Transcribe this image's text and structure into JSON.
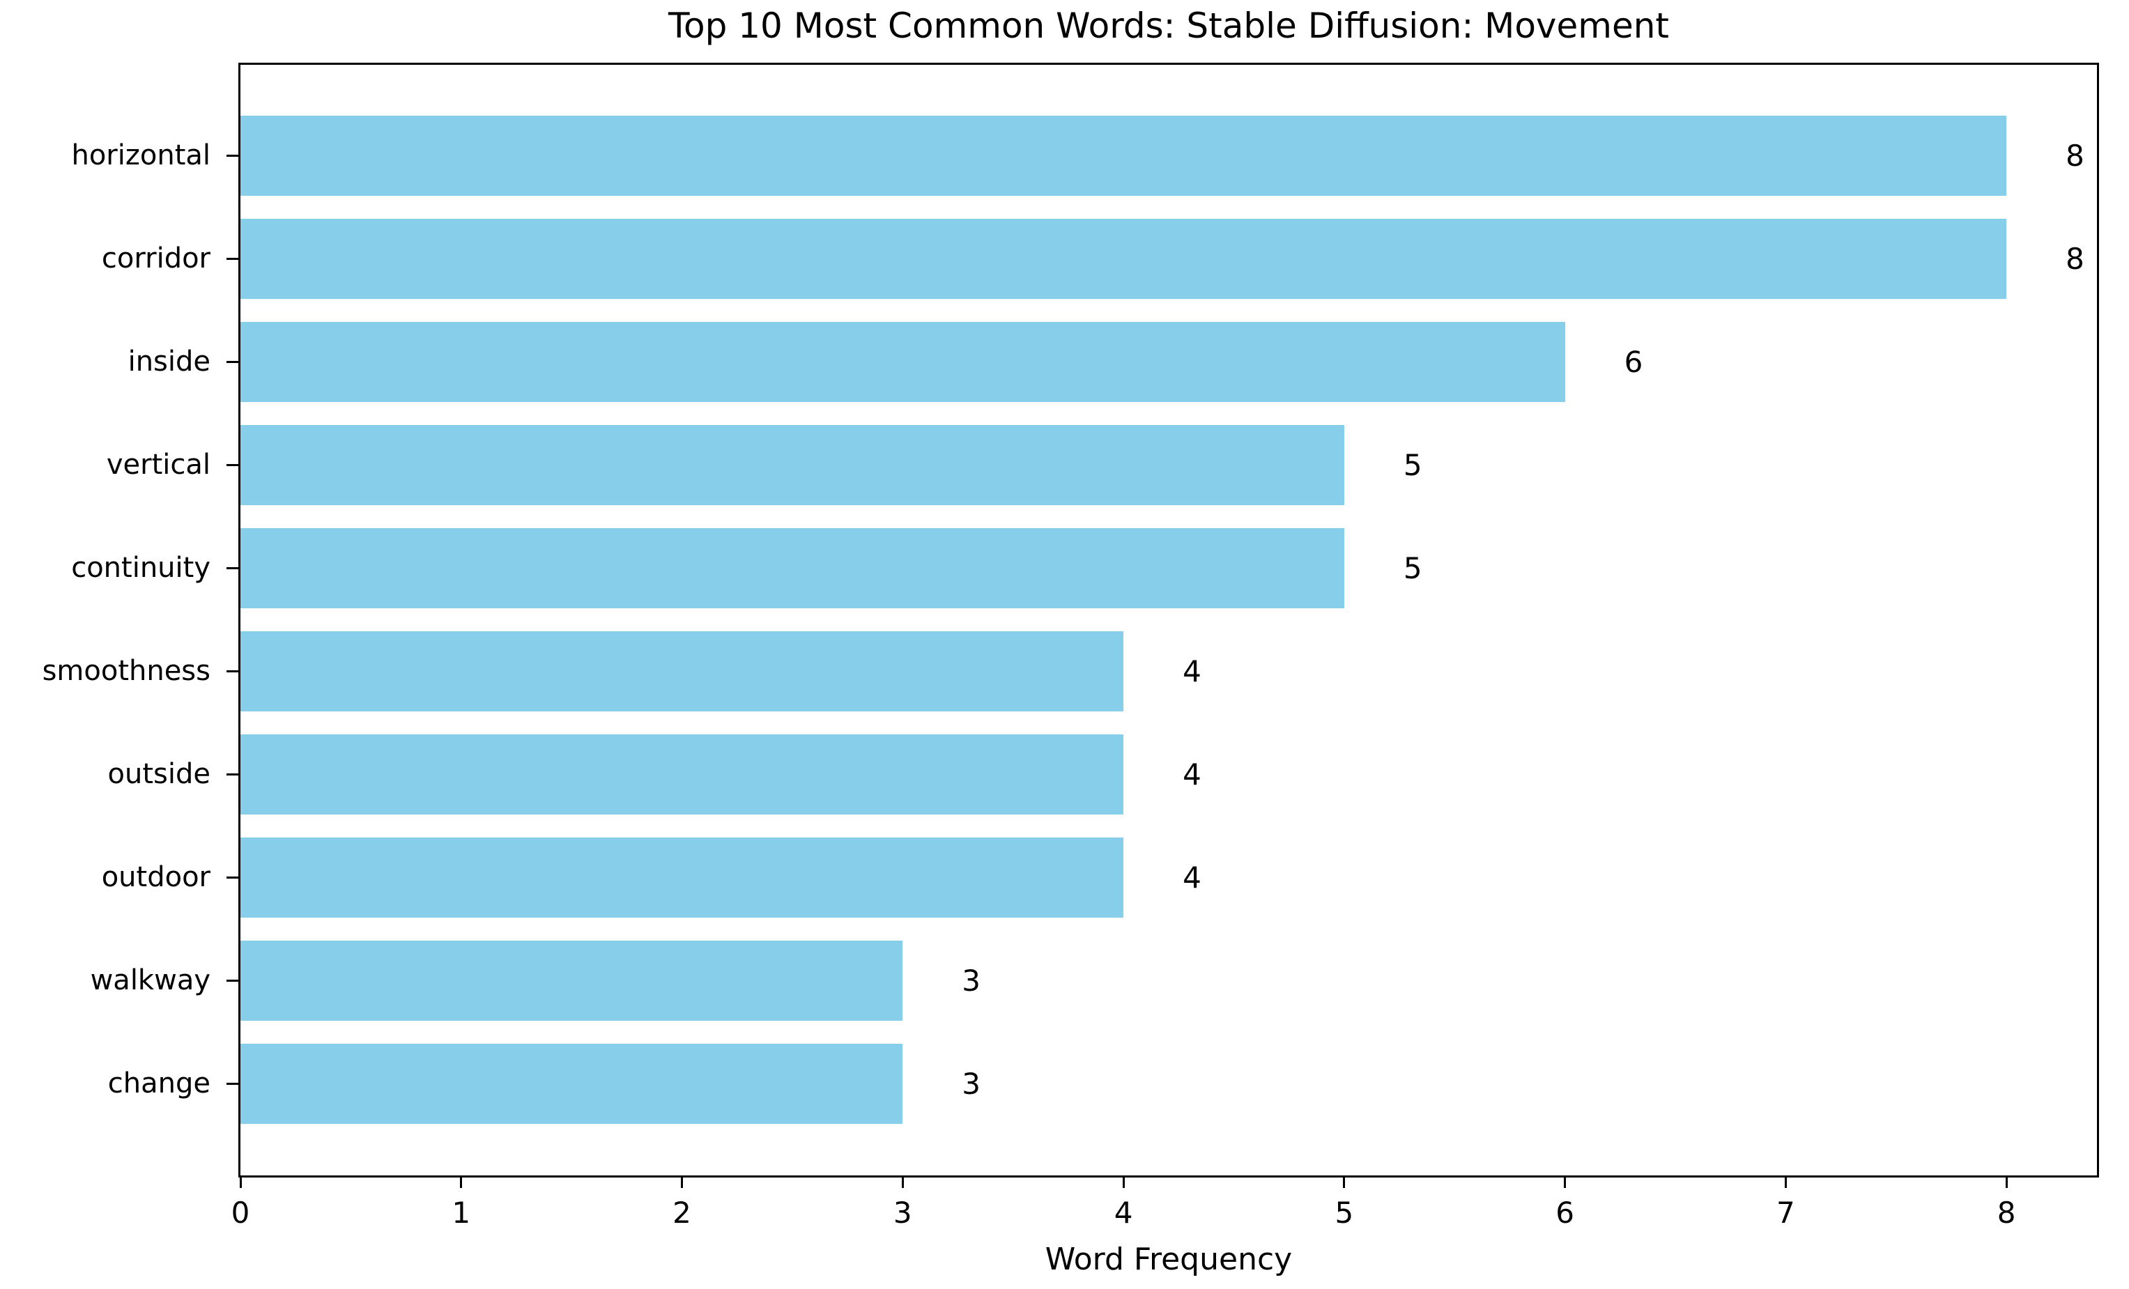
{
  "chart_data": {
    "type": "bar",
    "orientation": "horizontal",
    "title": "Top 10 Most Common Words: Stable Diffusion: Movement",
    "xlabel": "Word Frequency",
    "ylabel": "",
    "categories": [
      "horizontal",
      "corridor",
      "inside",
      "vertical",
      "continuity",
      "smoothness",
      "outside",
      "outdoor",
      "walkway",
      "change"
    ],
    "values": [
      8,
      8,
      6,
      5,
      5,
      4,
      4,
      4,
      3,
      3
    ],
    "bar_labels": [
      "8",
      "8",
      "6",
      "5",
      "5",
      "4",
      "4",
      "4",
      "3",
      "3"
    ],
    "xticks": [
      "0",
      "1",
      "2",
      "3",
      "4",
      "5",
      "6",
      "7",
      "8"
    ],
    "xlim": [
      0,
      8.41
    ],
    "bar_color": "#87CEEB",
    "text_color": "#000000",
    "grid": false,
    "legend": false
  }
}
